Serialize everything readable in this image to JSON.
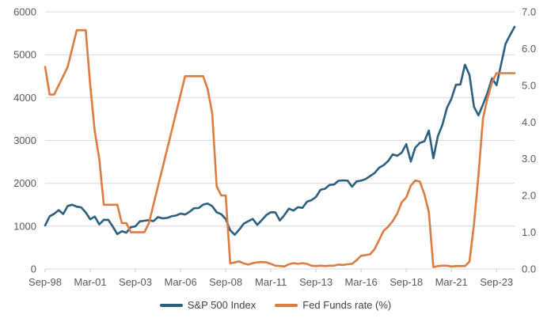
{
  "chart_data": {
    "type": "line",
    "title": "",
    "grid": "horizontal",
    "legend_position": "bottom",
    "x_axis": {
      "min": 1998.75,
      "max": 2024.75,
      "tick_values": [
        1998.75,
        2001.25,
        2003.75,
        2006.25,
        2008.75,
        2011.25,
        2013.75,
        2016.25,
        2018.75,
        2021.25,
        2023.75
      ],
      "tick_labels": [
        "Sep-98",
        "Mar-01",
        "Sep-03",
        "Mar-06",
        "Sep-08",
        "Mar-11",
        "Sep-13",
        "Mar-16",
        "Sep-18",
        "Mar-21",
        "Sep-23"
      ]
    },
    "left_axis": {
      "min": 0,
      "max": 6000,
      "tick_values": [
        0,
        1000,
        2000,
        3000,
        4000,
        5000,
        6000
      ],
      "tick_labels": [
        "0",
        "1000",
        "2000",
        "3000",
        "4000",
        "5000",
        "6000"
      ]
    },
    "right_axis": {
      "min": 0,
      "max": 7,
      "tick_values": [
        0,
        1,
        2,
        3,
        4,
        5,
        6,
        7
      ],
      "tick_labels": [
        "0.0",
        "1.0",
        "2.0",
        "3.0",
        "4.0",
        "5.0",
        "6.0",
        "7.0"
      ]
    },
    "series": [
      {
        "name": "S&P 500 Index",
        "color": "#2B5F7E",
        "axis": "left",
        "x_start": 1998.75,
        "x_step": 0.25,
        "values": [
          1017,
          1229,
          1286,
          1373,
          1283,
          1469,
          1499,
          1455,
          1436,
          1320,
          1160,
          1224,
          1041,
          1148,
          1147,
          990,
          815,
          880,
          848,
          975,
          996,
          1112,
          1126,
          1141,
          1115,
          1212,
          1181,
          1191,
          1229,
          1248,
          1295,
          1270,
          1336,
          1418,
          1421,
          1503,
          1527,
          1468,
          1323,
          1280,
          1166,
          903,
          798,
          919,
          1057,
          1115,
          1169,
          1031,
          1141,
          1258,
          1326,
          1321,
          1131,
          1258,
          1408,
          1362,
          1441,
          1426,
          1569,
          1606,
          1682,
          1848,
          1872,
          1960,
          1972,
          2059,
          2068,
          2063,
          1920,
          2044,
          2060,
          2099,
          2168,
          2239,
          2363,
          2423,
          2519,
          2674,
          2641,
          2718,
          2914,
          2507,
          2834,
          2942,
          2977,
          3231,
          2585,
          3100,
          3363,
          3756,
          3973,
          4298,
          4308,
          4766,
          4530,
          3785,
          3586,
          3840,
          4109,
          4450,
          4288,
          4770,
          5254,
          5460,
          5650
        ]
      },
      {
        "name": "Fed Funds rate (%)",
        "color": "#DC7B42",
        "axis": "right",
        "x_start": 1998.75,
        "x_step": 0.25,
        "values": [
          5.5,
          4.75,
          4.75,
          5.0,
          5.25,
          5.5,
          6.0,
          6.5,
          6.5,
          6.5,
          5.0,
          3.75,
          3.0,
          1.75,
          1.75,
          1.75,
          1.75,
          1.25,
          1.25,
          1.0,
          1.0,
          1.0,
          1.0,
          1.25,
          1.75,
          2.25,
          2.75,
          3.25,
          3.75,
          4.25,
          4.75,
          5.25,
          5.25,
          5.25,
          5.25,
          5.25,
          4.9,
          4.25,
          2.25,
          2.0,
          2.0,
          0.15,
          0.18,
          0.21,
          0.15,
          0.12,
          0.16,
          0.18,
          0.19,
          0.18,
          0.14,
          0.09,
          0.08,
          0.07,
          0.13,
          0.16,
          0.14,
          0.16,
          0.14,
          0.09,
          0.08,
          0.09,
          0.08,
          0.09,
          0.09,
          0.12,
          0.11,
          0.13,
          0.14,
          0.24,
          0.36,
          0.38,
          0.4,
          0.54,
          0.79,
          1.04,
          1.15,
          1.3,
          1.51,
          1.82,
          1.95,
          2.27,
          2.41,
          2.38,
          2.04,
          1.55,
          0.05,
          0.08,
          0.09,
          0.09,
          0.07,
          0.08,
          0.08,
          0.08,
          0.2,
          1.21,
          2.56,
          4.1,
          4.65,
          5.08,
          5.33,
          5.33,
          5.33,
          5.33,
          5.33
        ]
      }
    ]
  },
  "colors": {
    "background": "#FFFFFF",
    "grid": "#D9D9D9",
    "axis_line": "#D9D9D9",
    "tick": "#C9C9C9",
    "axis_text": "#595959",
    "legend_text": "#404040"
  }
}
